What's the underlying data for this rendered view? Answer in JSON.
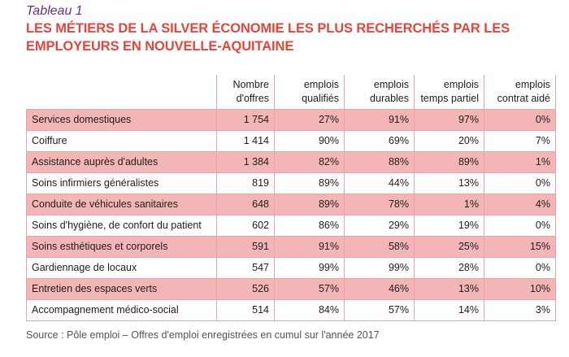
{
  "label": "Tableau 1",
  "title_line1": "LES MÉTIERS DE LA SILVER ÉCONOMIE LES PLUS RECHERCHÉS PAR LES",
  "title_line2": "EMPLOYEURS EN NOUVELLE-AQUITAINE",
  "headers": [
    [
      "Nombre",
      "d'offres"
    ],
    [
      "emplois",
      "qualifiés"
    ],
    [
      "emplois",
      "durables"
    ],
    [
      "emplois",
      "temps partiel"
    ],
    [
      "emplois",
      "contrat aidé"
    ]
  ],
  "rows": [
    {
      "name": "Services domestiques",
      "values": [
        "1 754",
        "27%",
        "91%",
        "97%",
        "0%"
      ]
    },
    {
      "name": "Coiffure",
      "values": [
        "1 414",
        "90%",
        "69%",
        "20%",
        "7%"
      ]
    },
    {
      "name": "Assistance auprès d'adultes",
      "values": [
        "1 384",
        "82%",
        "88%",
        "89%",
        "1%"
      ]
    },
    {
      "name": "Soins infirmiers généralistes",
      "values": [
        "819",
        "89%",
        "44%",
        "13%",
        "0%"
      ]
    },
    {
      "name": "Conduite de véhicules sanitaires",
      "values": [
        "648",
        "89%",
        "78%",
        "1%",
        "4%"
      ]
    },
    {
      "name": "Soins d'hygiène, de confort du patient",
      "values": [
        "602",
        "86%",
        "29%",
        "19%",
        "0%"
      ]
    },
    {
      "name": "Soins esthétiques et corporels",
      "values": [
        "591",
        "91%",
        "58%",
        "25%",
        "15%"
      ]
    },
    {
      "name": "Gardiennage de locaux",
      "values": [
        "547",
        "99%",
        "99%",
        "28%",
        "0%"
      ]
    },
    {
      "name": "Entretien des espaces verts",
      "values": [
        "526",
        "57%",
        "46%",
        "13%",
        "10%"
      ]
    },
    {
      "name": "Accompagnement médico-social",
      "values": [
        "514",
        "84%",
        "57%",
        "14%",
        "3%"
      ]
    }
  ],
  "source": "Source : Pôle emploi – Offres d'emploi enregistrées en cumul sur l'année 2017",
  "colors": {
    "label": "#6b2d86",
    "title": "#e5453b",
    "shaded_row": "#f4b5b7",
    "grid": "#e8a5a8"
  }
}
